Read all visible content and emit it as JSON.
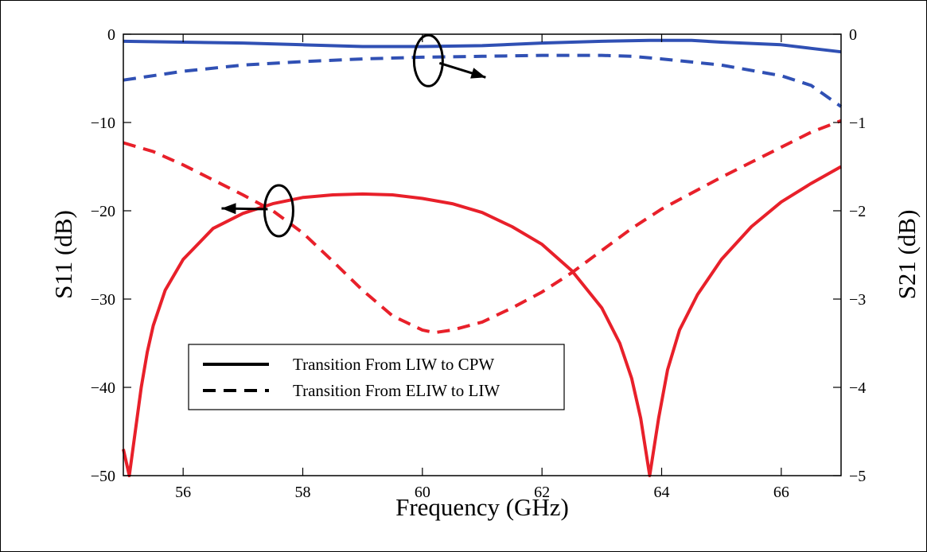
{
  "chart_data": {
    "type": "line",
    "title": "",
    "xlabel": "Frequency (GHz)",
    "ylabel_left": "S11 (dB)",
    "ylabel_right": "S21 (dB)",
    "xlim": [
      55,
      67
    ],
    "ylim_left": [
      -50,
      0
    ],
    "ylim_right": [
      -5,
      0
    ],
    "x_ticks": [
      56,
      58,
      60,
      62,
      64,
      66
    ],
    "x_tick_labels": [
      "56",
      "58",
      "60",
      "62",
      "64",
      "66"
    ],
    "y_left_ticks": [
      0,
      -10,
      -20,
      -30,
      -40,
      -50
    ],
    "y_left_tick_labels": [
      "0",
      "−10",
      "−20",
      "−30",
      "−40",
      "−50"
    ],
    "y_right_ticks": [
      0,
      -1,
      -2,
      -3,
      -4,
      -5
    ],
    "y_right_tick_labels": [
      "0",
      "−1",
      "−2",
      "−3",
      "−4",
      "−5"
    ],
    "grid": false,
    "legend": {
      "placement": "lower-left",
      "entries": [
        {
          "label": "Transition From LIW to CPW",
          "style": "solid"
        },
        {
          "label": "Transition From ELIW to LIW",
          "style": "dashed"
        }
      ]
    },
    "series": [
      {
        "axis": "right",
        "style": "solid",
        "color": "#3050b4",
        "x": [
          55,
          56,
          57,
          58,
          59,
          60,
          61,
          62,
          63,
          63.8,
          64.5,
          65,
          66,
          66.5,
          67
        ],
        "y": [
          -0.08,
          -0.09,
          -0.1,
          -0.12,
          -0.14,
          -0.14,
          -0.13,
          -0.1,
          -0.08,
          -0.07,
          -0.07,
          -0.09,
          -0.12,
          -0.16,
          -0.2
        ]
      },
      {
        "axis": "right",
        "style": "dashed",
        "color": "#3050b4",
        "x": [
          55,
          56,
          57,
          58,
          59,
          60,
          61,
          62,
          63,
          63.5,
          64,
          65,
          66,
          66.5,
          67
        ],
        "y": [
          -0.52,
          -0.42,
          -0.35,
          -0.31,
          -0.28,
          -0.26,
          -0.25,
          -0.24,
          -0.24,
          -0.25,
          -0.28,
          -0.35,
          -0.47,
          -0.58,
          -0.82
        ]
      },
      {
        "axis": "left",
        "style": "solid",
        "color": "#e8202a",
        "x": [
          55,
          55.1,
          55.2,
          55.3,
          55.4,
          55.5,
          55.7,
          56,
          56.5,
          57,
          57.5,
          58,
          58.5,
          59,
          59.5,
          60,
          60.5,
          61,
          61.5,
          62,
          62.5,
          63,
          63.3,
          63.5,
          63.65,
          63.8,
          63.95,
          64.1,
          64.3,
          64.6,
          65,
          65.5,
          66,
          66.5,
          67
        ],
        "y": [
          -47,
          -50,
          -45,
          -40,
          -36,
          -33,
          -29,
          -25.5,
          -22,
          -20.3,
          -19.2,
          -18.5,
          -18.2,
          -18.1,
          -18.2,
          -18.6,
          -19.2,
          -20.2,
          -21.8,
          -23.8,
          -26.8,
          -31,
          -35,
          -39,
          -43.5,
          -50,
          -43.5,
          -38,
          -33.5,
          -29.5,
          -25.5,
          -21.8,
          -19,
          -16.9,
          -15
        ]
      },
      {
        "axis": "left",
        "style": "dashed",
        "color": "#e8202a",
        "x": [
          55,
          55.5,
          56,
          56.5,
          57,
          57.5,
          58,
          58.5,
          59,
          59.5,
          60,
          60.2,
          60.5,
          61,
          61.5,
          62,
          62.5,
          63,
          63.5,
          64,
          64.5,
          65,
          65.5,
          66,
          66.5,
          67
        ],
        "y": [
          -12.3,
          -13.3,
          -14.8,
          -16.5,
          -18.2,
          -20,
          -22.5,
          -25.7,
          -29,
          -31.9,
          -33.5,
          -33.8,
          -33.5,
          -32.6,
          -31,
          -29.2,
          -27,
          -24.5,
          -22,
          -19.8,
          -18,
          -16.2,
          -14.5,
          -12.8,
          -11.1,
          -9.8
        ]
      }
    ],
    "annotations": [
      {
        "type": "ellipse-arrow",
        "at_x": 60.1,
        "at_y_left": -3,
        "arrow_to": "right"
      },
      {
        "type": "ellipse-arrow",
        "at_x": 57.6,
        "at_y_left": -20,
        "arrow_to": "left"
      }
    ]
  }
}
